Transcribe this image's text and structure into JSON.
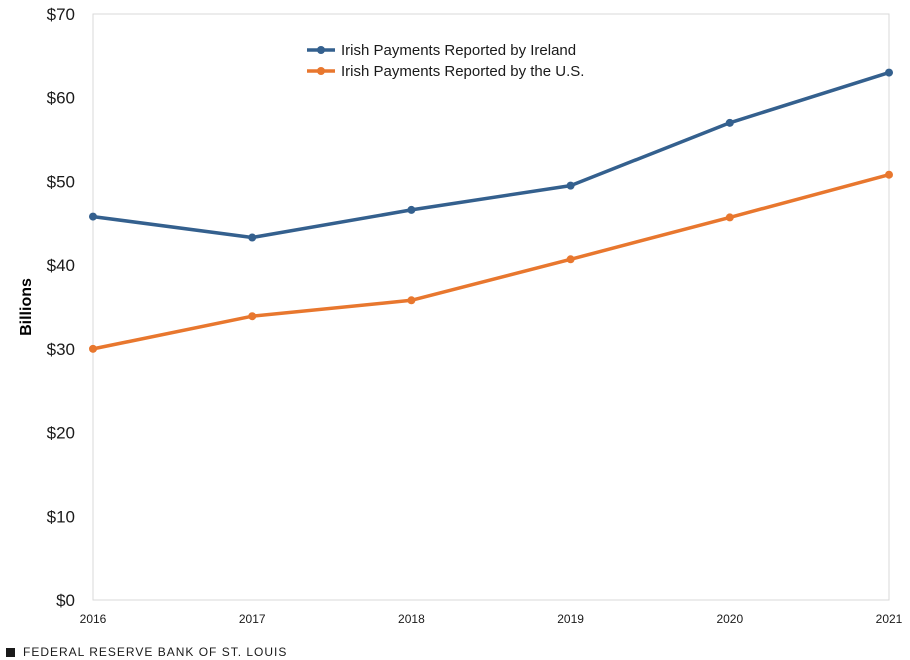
{
  "chart_data": {
    "type": "line",
    "title": "",
    "xlabel": "",
    "ylabel": "Billions",
    "categories": [
      "2016",
      "2017",
      "2018",
      "2019",
      "2020",
      "2021"
    ],
    "y_tick_labels": [
      "$0",
      "$10",
      "$20",
      "$30",
      "$40",
      "$50",
      "$60",
      "$70"
    ],
    "y_ticks": [
      0,
      10,
      20,
      30,
      40,
      50,
      60,
      70
    ],
    "ylim": [
      0,
      70
    ],
    "grid": false,
    "legend_position": "top-center",
    "series": [
      {
        "name": "Irish Payments Reported by Ireland",
        "color": "#34608e",
        "values": [
          45.8,
          43.3,
          46.6,
          49.5,
          57.0,
          63.0
        ]
      },
      {
        "name": "Irish Payments Reported by the U.S.",
        "color": "#e8772e",
        "values": [
          30.0,
          33.9,
          35.8,
          40.7,
          45.7,
          50.8
        ]
      }
    ]
  },
  "footer": {
    "source": "FEDERAL RESERVE BANK OF ST. LOUIS"
  }
}
